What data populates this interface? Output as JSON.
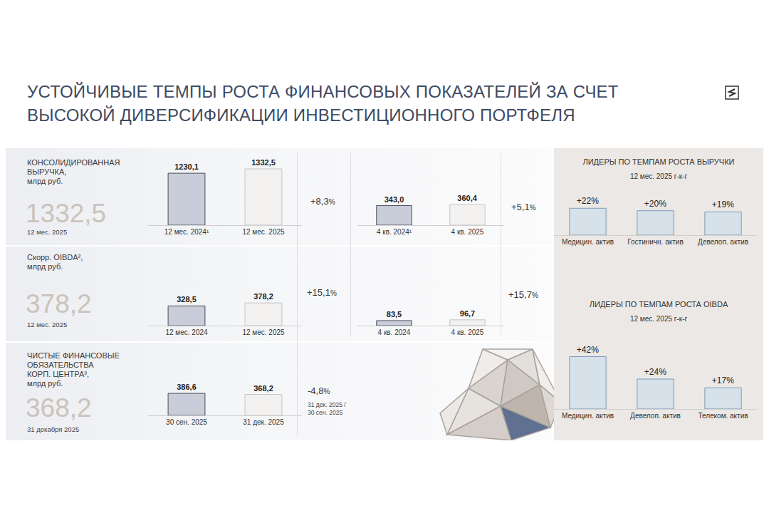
{
  "title": [
    "УСТОЙЧИВЫЕ ТЕМПЫ РОСТА ФИНАНСОВЫХ ПОКАЗАТЕЛЕЙ ЗА СЧЕТ",
    "ВЫСОКОЙ ДИВЕРСИФИКАЦИИ ИНВЕСТИЦИОННОГО ПОРТФЕЛЯ"
  ],
  "rows": [
    {
      "label": [
        "КОНСОЛИДИРОВАННАЯ",
        "ВЫРУЧКА,",
        "млрд руб."
      ],
      "headline": "1332,5",
      "headline_date": "12 мес. 2025",
      "changes": [
        {
          "text": "+8,3%"
        },
        {
          "text": "+5,1%"
        }
      ]
    },
    {
      "label": [
        "Скорр. OIBDA²,",
        "млрд руб."
      ],
      "headline": "378,2",
      "headline_date": "12 мес. 2025",
      "changes": [
        {
          "text": "+15,1%"
        },
        {
          "text": "+15,7%"
        }
      ]
    },
    {
      "label": [
        "ЧИСТЫЕ ФИНАНСОВЫЕ",
        "ОБЯЗАТЕЛЬСТВА",
        "КОРП. ЦЕНТРА³,",
        "млрд руб."
      ],
      "headline": "368,2",
      "headline_date": "31 декабря 2025",
      "changes": [
        {
          "text": "-4,8%",
          "note": [
            "31 дек. 2025 /",
            "30 сен. 2025"
          ]
        }
      ]
    }
  ],
  "chart_data": [
    {
      "type": "bar",
      "categories": [
        "12 мес. 2024¹",
        "12 мес. 2025"
      ],
      "values": [
        1230.1,
        1332.5
      ],
      "value_labels": [
        "1230,1",
        "1332,5"
      ],
      "colors": [
        "#c9ccd9",
        "#f3f1ef"
      ],
      "ylim": [
        0,
        1350
      ],
      "yticks": [],
      "grid": false,
      "data_labels": true,
      "tick_labels": "x"
    },
    {
      "type": "bar",
      "categories": [
        "4 кв. 2024¹",
        "4 кв. 2025"
      ],
      "values": [
        343.0,
        360.4
      ],
      "value_labels": [
        "343,0",
        "360,4"
      ],
      "colors": [
        "#c9ccd9",
        "#f3f1ef"
      ],
      "ylim": [
        0,
        1000
      ],
      "yticks": [],
      "grid": false,
      "data_labels": true,
      "tick_labels": "x"
    },
    {
      "type": "bar",
      "categories": [
        "12 мес. 2024",
        "12 мес. 2025"
      ],
      "values": [
        328.5,
        378.2
      ],
      "value_labels": [
        "328,5",
        "378,2"
      ],
      "colors": [
        "#c9ccd9",
        "#f3f1ef"
      ],
      "ylim": [
        0,
        950
      ],
      "yticks": [],
      "grid": false,
      "data_labels": true,
      "tick_labels": "x"
    },
    {
      "type": "bar",
      "categories": [
        "4 кв. 2024",
        "4 кв. 2025"
      ],
      "values": [
        83.5,
        96.7
      ],
      "value_labels": [
        "83,5",
        "96,7"
      ],
      "colors": [
        "#c9ccd9",
        "#f3f1ef"
      ],
      "ylim": [
        0,
        950
      ],
      "yticks": [],
      "grid": false,
      "data_labels": true,
      "tick_labels": "x"
    },
    {
      "type": "bar",
      "categories": [
        "30 сен. 2025",
        "31 дек. 2025"
      ],
      "values": [
        386.6,
        368.2
      ],
      "value_labels": [
        "386,6",
        "368,2"
      ],
      "colors": [
        "#c9ccd9",
        "#f3f1ef"
      ],
      "ylim": [
        0,
        1000
      ],
      "yticks": [],
      "grid": false,
      "data_labels": true,
      "tick_labels": "x"
    },
    {
      "type": "bar",
      "title": "ЛИДЕРЫ ПО ТЕМПАМ РОСТА ВЫРУЧКИ",
      "subtitle": "12 мес. 2025 г-к-г",
      "categories": [
        "Медицин. актив",
        "Гостиничн. актив",
        "Девелоп. актив"
      ],
      "values": [
        22,
        20,
        19
      ],
      "value_labels": [
        "+22%",
        "+20%",
        "+19%"
      ],
      "color": "#d7e1ea",
      "ylim": [
        0,
        28
      ],
      "yticks": [],
      "grid": false,
      "data_labels": true,
      "tick_labels": "x"
    },
    {
      "type": "bar",
      "title": "ЛИДЕРЫ ПО ТЕМПАМ РОСТА OIBDA",
      "subtitle": "12 мес. 2025 г-к-г",
      "categories": [
        "Медицин. актив",
        "Девелоп. актив",
        "Телеком. актив"
      ],
      "values": [
        42,
        24,
        17
      ],
      "value_labels": [
        "+42%",
        "+24%",
        "+17%"
      ],
      "color": "#d7e1ea",
      "ylim": [
        0,
        48
      ],
      "yticks": [],
      "grid": false,
      "data_labels": true,
      "tick_labels": "x"
    }
  ]
}
